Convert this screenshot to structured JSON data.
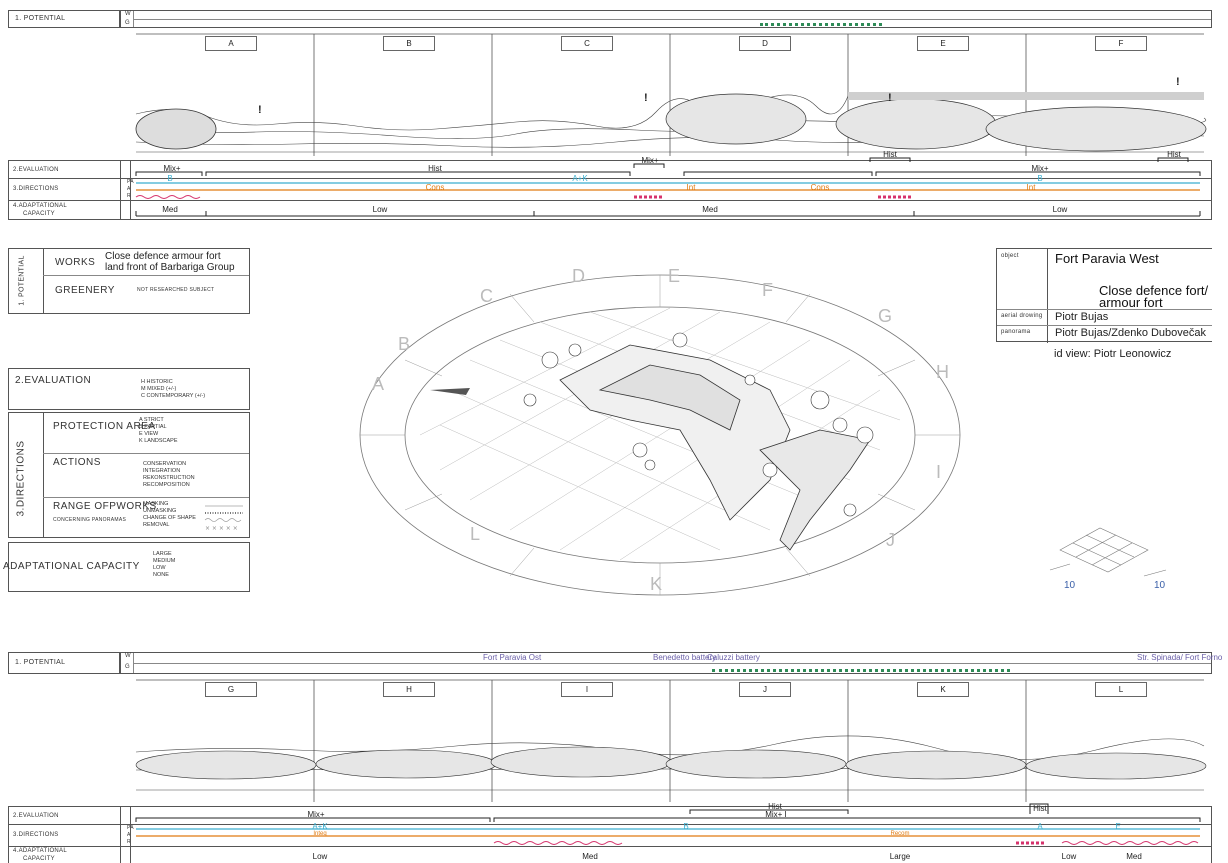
{
  "top_strip": {
    "potential_label": "1.  POTENTIAL",
    "w": "W",
    "g": "G",
    "columns": [
      "A",
      "B",
      "C",
      "D",
      "E",
      "F"
    ],
    "evaluation_label": "2.EVALUATION",
    "directions_label": "3.DIRECTIONS",
    "adaptational_label": "4.ADAPTATIONAL",
    "capacity_label": "CAPACITY",
    "pa": "PA",
    "a": "A",
    "r": "R",
    "eval_items": [
      "Mix+",
      "Hist",
      "Mix+",
      "Hist",
      "Hist",
      "Mix+"
    ],
    "pa_items": [
      "B",
      "A+K",
      "B"
    ],
    "a_items": [
      "Cons",
      "Int",
      "Cons",
      "Int"
    ],
    "cap_items": [
      "Med",
      "Low",
      "Med",
      "Low"
    ],
    "marks": [
      "!",
      "!",
      "!",
      "!"
    ]
  },
  "legend": {
    "potential_side": "1. POTENTIAL",
    "works_label": "WORKS",
    "works_text_1": "Close defence armour fort",
    "works_text_2": "land front of Barbariga Group",
    "greenery_label": "GREENERY",
    "greenery_text": "NOT RESEARCHED SUBJECT",
    "evaluation_title": "2.EVALUATION",
    "evaluation_items": [
      "H  HISTORIC",
      "M  MIXED (+/-)",
      "C  CONTEMPORARY (+/-)"
    ],
    "directions_side": "3.DIRECTIONS",
    "protection_title": "PROTECTION AREA",
    "protection_items": [
      "A  STRICT",
      "B  PARTIAL",
      "E  VIEW",
      "K  LANDSCAPE"
    ],
    "actions_title": "ACTIONS",
    "actions_items": [
      "CONSERVATION",
      "INTEGRATION",
      "REKONSTRUCTION",
      "RECOMPOSITION"
    ],
    "range_title": "RANGE OFPWORKS",
    "range_sub": "CONCERNING PANORAMAS",
    "range_items": [
      "MASKING",
      "UNMASKING",
      "CHANGE OF SHAPE",
      "REMOVAL"
    ],
    "capacity_title": "ADAPTATIONAL  CAPACITY",
    "capacity_items": [
      "LARGE",
      "MEDIUM",
      "LOW",
      "NONE"
    ]
  },
  "info": {
    "object_label": "object",
    "object_value": "Fort Paravia West",
    "object_sub_1": "Close defence fort/",
    "object_sub_2": "armour fort",
    "aerial_label": "aerial drowing",
    "aerial_value": "Piotr Bujas",
    "panorama_label": "panorama",
    "panorama_value": "Piotr Bujas/Zdenko Dubovečak",
    "id_view": "id view: Piotr Leonowicz"
  },
  "scale": {
    "left": "10",
    "right": "10"
  },
  "ring_letters": [
    "A",
    "B",
    "C",
    "D",
    "E",
    "F",
    "G",
    "H",
    "I",
    "J",
    "K",
    "L"
  ],
  "bottom_strip": {
    "potential_label": "1.  POTENTIAL",
    "w": "W",
    "g": "G",
    "places": [
      "Fort Paravia Ost",
      "Benedetto battery",
      "Caluzzi battery",
      "Str. Spinada/ Fort Forno"
    ],
    "columns": [
      "G",
      "H",
      "I",
      "J",
      "K",
      "L"
    ],
    "evaluation_label": "2.EVALUATION",
    "directions_label": "3.DIRECTIONS",
    "adaptational_label": "4.ADAPTATIONAL",
    "capacity_label": "CAPACITY",
    "pa": "PA",
    "a": "A",
    "r": "R",
    "eval_items": [
      "Mix+",
      "Hist",
      "Mix+ I",
      "Hist"
    ],
    "pa_items": [
      "A+K",
      "B",
      "A",
      "E"
    ],
    "a_items": [
      "Integ",
      "Recom"
    ],
    "cap_items": [
      "Low",
      "Med",
      "Large",
      "Low",
      "Med"
    ]
  },
  "colors": {
    "green": "#2e8b57",
    "pink": "#d6336c",
    "orange": "#e07a10",
    "cyan": "#3aaecf",
    "purple": "#6a5fa8"
  }
}
